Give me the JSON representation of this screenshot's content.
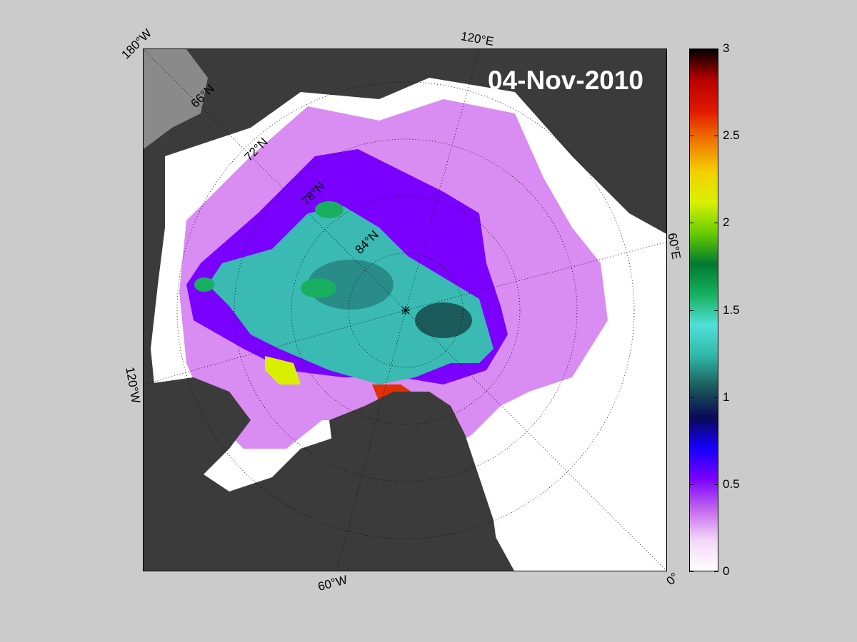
{
  "date": "04-Nov-2010",
  "longitude_labels": {
    "lon_180w": "180°W",
    "lon_120e": "120°E",
    "lon_60e": "60°E",
    "lon_120w": "120°W",
    "lon_60w": "60°W",
    "lon_0": "0°"
  },
  "latitude_labels": {
    "lat_66n": "66°N",
    "lat_72n": "72°N",
    "lat_78n": "78°N",
    "lat_84n": "84°N"
  },
  "colorbar": {
    "min": 0,
    "max": 3,
    "ticks": [
      "3",
      "2.5",
      "2",
      "1.5",
      "1",
      "0.5",
      "0"
    ],
    "stops": [
      "#ffffff",
      "#f3d6f8",
      "#c266ee",
      "#7a00ff",
      "#1400ff",
      "#0a0a55",
      "#1b5b5b",
      "#2fb7a8",
      "#50e0d8",
      "#18b060",
      "#007a30",
      "#66cc00",
      "#d8f000",
      "#f4d000",
      "#f07800",
      "#e01800",
      "#b80000",
      "#000000"
    ]
  },
  "colors": {
    "background": "#cbcbcb",
    "land": "#3b3b3b",
    "land_grey": "#8a8a8a",
    "ocean_open": "#ffffff",
    "thin_ice": "#d98cf2",
    "mid_ice": "#5a10ff",
    "thick_ice": "#3bbab3",
    "very_thick": "#e03000"
  }
}
